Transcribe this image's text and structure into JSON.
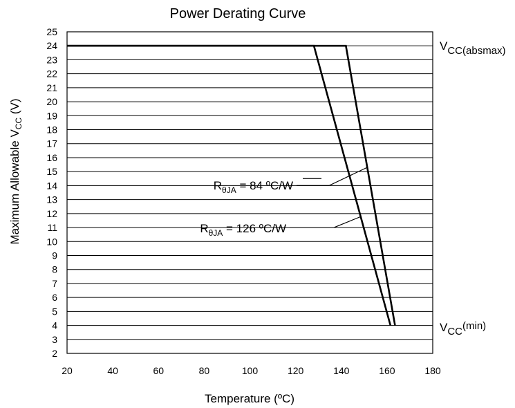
{
  "chart_data": {
    "type": "line",
    "title": "Power Derating Curve",
    "xlabel": "Temperature (ºC)",
    "ylabel_main": "Maximum Allowable V",
    "ylabel_sub": "CC",
    "ylabel_tail": " (V)",
    "xlim": [
      20,
      180
    ],
    "ylim": [
      2,
      25
    ],
    "xticks": [
      20,
      40,
      60,
      80,
      100,
      120,
      140,
      160,
      180
    ],
    "yticks": [
      2,
      3,
      4,
      5,
      6,
      7,
      8,
      9,
      10,
      11,
      12,
      13,
      14,
      15,
      16,
      17,
      18,
      19,
      20,
      21,
      22,
      23,
      24,
      25
    ],
    "grid": true,
    "series": [
      {
        "annotation_prefix": "R",
        "annotation_sub": "θJA",
        "annotation_value": " = 84 ºC/W",
        "x": [
          20,
          142,
          163.5
        ],
        "y": [
          24,
          24,
          4
        ],
        "leader_y": [
          14.5,
          14
        ],
        "leader_point": [
          151.3,
          15.3
        ]
      },
      {
        "annotation_prefix": "R",
        "annotation_sub": "θJA",
        "annotation_value": " = 126 ºC/W",
        "x": [
          20,
          128,
          161.5
        ],
        "y": [
          24,
          24,
          4
        ],
        "leader_y": [
          11
        ],
        "leader_point": [
          148.8,
          11.8
        ]
      }
    ],
    "right_labels": [
      {
        "main": "V",
        "sub": "CC(absmax)",
        "sub_shift": "below",
        "y": 24
      },
      {
        "main": "V",
        "sub": "CC",
        "sup": "(min)",
        "y": 4
      }
    ]
  }
}
